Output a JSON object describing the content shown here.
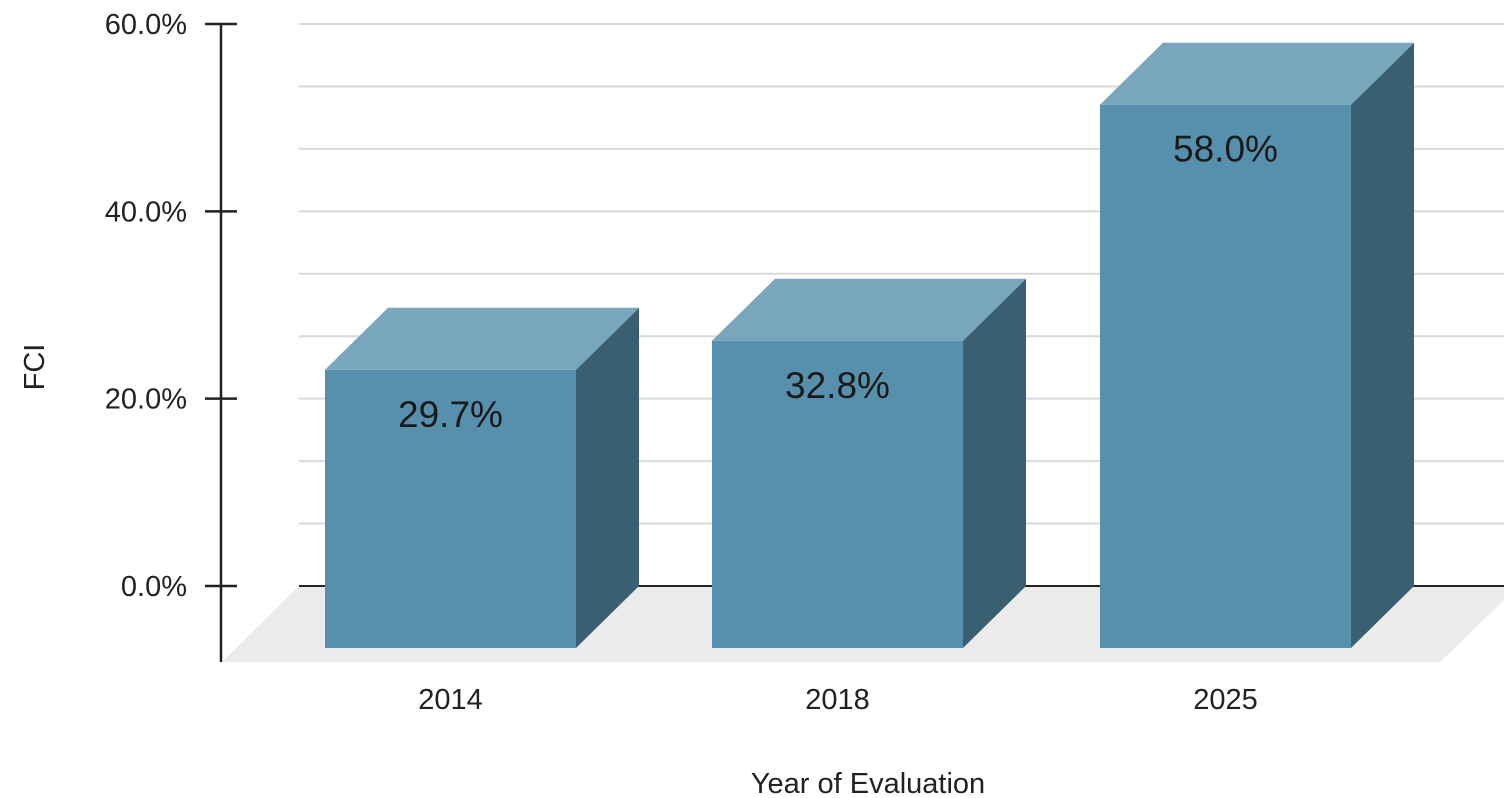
{
  "chart_data": {
    "type": "bar",
    "style": "3d",
    "categories": [
      "2014",
      "2018",
      "2025"
    ],
    "values": [
      29.7,
      32.8,
      58.0
    ],
    "data_labels": [
      "29.7%",
      "32.8%",
      "58.0%"
    ],
    "title": "",
    "xlabel": "Year of Evaluation",
    "ylabel": "FCI",
    "ylim": [
      0,
      60
    ],
    "y_ticks": [
      0,
      20,
      40,
      60
    ],
    "y_tick_labels": [
      "0.0%",
      "20.0%",
      "40.0%",
      "60.0%"
    ],
    "grid": true,
    "legend": "none",
    "colors": {
      "bar_front": "#5790ad",
      "bar_top": "#78a6bc",
      "bar_side": "#3a5f71",
      "floor": "#ebebeb",
      "gridline": "#d9d9d9",
      "axis": "#222222"
    }
  }
}
